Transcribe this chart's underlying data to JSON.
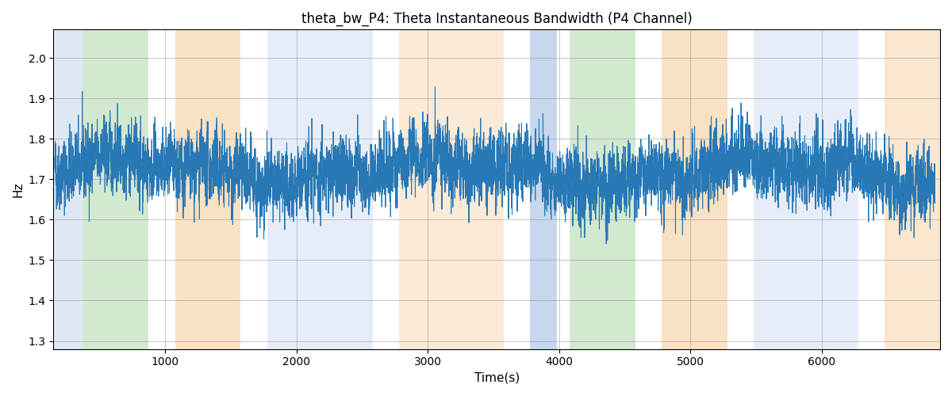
{
  "title": "theta_bw_P4: Theta Instantaneous Bandwidth (P4 Channel)",
  "xlabel": "Time(s)",
  "ylabel": "Hz",
  "ylim": [
    1.28,
    2.07
  ],
  "xlim": [
    150,
    6900
  ],
  "line_color": "#2878b5",
  "line_width": 0.8,
  "background_color": "#ffffff",
  "bands": [
    {
      "xmin": 150,
      "xmax": 370,
      "color": "#aec6e8",
      "alpha": 0.4
    },
    {
      "xmin": 370,
      "xmax": 870,
      "color": "#90c987",
      "alpha": 0.4
    },
    {
      "xmin": 870,
      "xmax": 1080,
      "color": "#ffffff",
      "alpha": 0.0
    },
    {
      "xmin": 1080,
      "xmax": 1570,
      "color": "#f5c58a",
      "alpha": 0.5
    },
    {
      "xmin": 1570,
      "xmax": 1780,
      "color": "#ffffff",
      "alpha": 0.0
    },
    {
      "xmin": 1780,
      "xmax": 2580,
      "color": "#aec6e8",
      "alpha": 0.3
    },
    {
      "xmin": 2580,
      "xmax": 2780,
      "color": "#ffffff",
      "alpha": 0.0
    },
    {
      "xmin": 2780,
      "xmax": 3580,
      "color": "#f5c58a",
      "alpha": 0.35
    },
    {
      "xmin": 3580,
      "xmax": 3780,
      "color": "#ffffff",
      "alpha": 0.0
    },
    {
      "xmin": 3780,
      "xmax": 3980,
      "color": "#aec6e8",
      "alpha": 0.7
    },
    {
      "xmin": 3980,
      "xmax": 4080,
      "color": "#ffffff",
      "alpha": 0.0
    },
    {
      "xmin": 4080,
      "xmax": 4580,
      "color": "#90c987",
      "alpha": 0.4
    },
    {
      "xmin": 4580,
      "xmax": 4780,
      "color": "#ffffff",
      "alpha": 0.0
    },
    {
      "xmin": 4780,
      "xmax": 5280,
      "color": "#f5c58a",
      "alpha": 0.5
    },
    {
      "xmin": 5280,
      "xmax": 5480,
      "color": "#ffffff",
      "alpha": 0.0
    },
    {
      "xmin": 5480,
      "xmax": 6280,
      "color": "#aec6e8",
      "alpha": 0.3
    },
    {
      "xmin": 6280,
      "xmax": 6480,
      "color": "#ffffff",
      "alpha": 0.0
    },
    {
      "xmin": 6480,
      "xmax": 6900,
      "color": "#f5c58a",
      "alpha": 0.4
    }
  ],
  "seed": 42,
  "n_points": 6700,
  "t_start": 160,
  "t_end": 6860,
  "signal_mean": 1.72,
  "signal_std": 0.07,
  "figsize": [
    12.0,
    5.0
  ],
  "dpi": 100
}
